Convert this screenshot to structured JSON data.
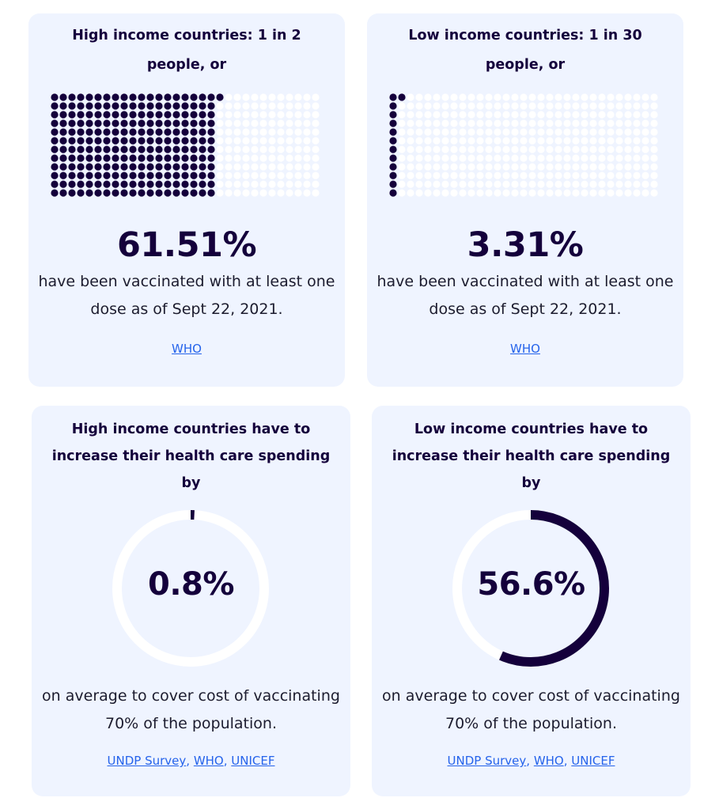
{
  "cards": [
    {
      "title": "High income countries: 1 in 2 people, or",
      "percent": "61.51%",
      "percent_value": 61.51,
      "description": "have been vaccinated with at least one dose as of Sept 22, 2021.",
      "source": "WHO"
    },
    {
      "title": "Low income countries: 1 in 30 people, or",
      "percent": "3.31%",
      "percent_value": 3.31,
      "description": "have been vaccinated with at least one dose as of Sept 22, 2021.",
      "source": "WHO"
    },
    {
      "title": "High income countries have to increase their health care spending by",
      "percent": "0.8%",
      "percent_value": 0.8,
      "description": "on average to cover cost of vaccinating 70% of the population.",
      "sources": [
        "UNDP Survey",
        "WHO",
        "UNICEF"
      ]
    },
    {
      "title": "Low income countries have to increase their health care spending by",
      "percent": "56.6%",
      "percent_value": 56.6,
      "description": "on average to cover cost of vaccinating 70% of the population.",
      "sources": [
        "UNDP Survey",
        "WHO",
        "UNICEF"
      ]
    }
  ],
  "colors": {
    "card_bg": "#eff4ff",
    "ink": "#14003b",
    "empty": "#ffffff",
    "link": "#2563eb"
  },
  "source_separator": ", "
}
